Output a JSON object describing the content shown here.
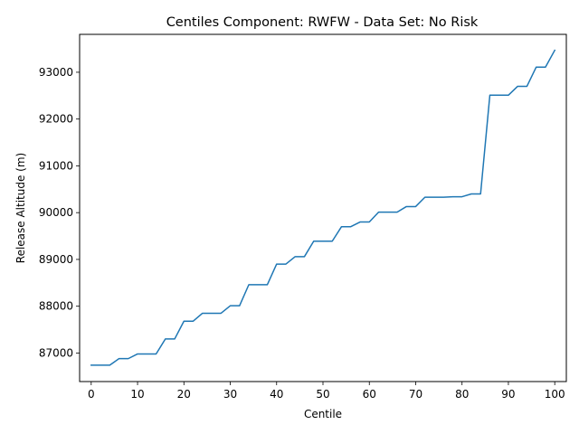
{
  "chart_data": {
    "type": "line",
    "title": "Centiles Component: RWFW - Data Set: No Risk",
    "xlabel": "Centile",
    "ylabel": "Release Altitude (m)",
    "xlim": [
      -2.5,
      102.5
    ],
    "ylim": [
      86390,
      93810
    ],
    "xticks": [
      0,
      10,
      20,
      30,
      40,
      50,
      60,
      70,
      80,
      90,
      100
    ],
    "yticks": [
      87000,
      88000,
      89000,
      90000,
      91000,
      92000,
      93000
    ],
    "grid": false,
    "legend": "none",
    "series": [
      {
        "color": "#1f77b4",
        "x": [
          0,
          2,
          4,
          6,
          8,
          10,
          12,
          14,
          16,
          18,
          20,
          22,
          24,
          26,
          28,
          30,
          32,
          34,
          36,
          38,
          40,
          42,
          44,
          46,
          48,
          50,
          52,
          54,
          56,
          58,
          60,
          62,
          64,
          66,
          68,
          70,
          72,
          74,
          76,
          78,
          80,
          82,
          84,
          86,
          88,
          90,
          92,
          94,
          96,
          98,
          100
        ],
        "y": [
          86740,
          86740,
          86740,
          86880,
          86880,
          86980,
          86980,
          86980,
          87300,
          87300,
          87680,
          87680,
          87850,
          87850,
          87850,
          88010,
          88010,
          88460,
          88460,
          88460,
          88900,
          88900,
          89060,
          89060,
          89390,
          89390,
          89390,
          89700,
          89700,
          89800,
          89800,
          90010,
          90010,
          90010,
          90130,
          90130,
          90330,
          90330,
          90330,
          90340,
          90340,
          90400,
          90400,
          92510,
          92510,
          92510,
          92700,
          92700,
          93110,
          93110,
          93470
        ]
      }
    ]
  }
}
